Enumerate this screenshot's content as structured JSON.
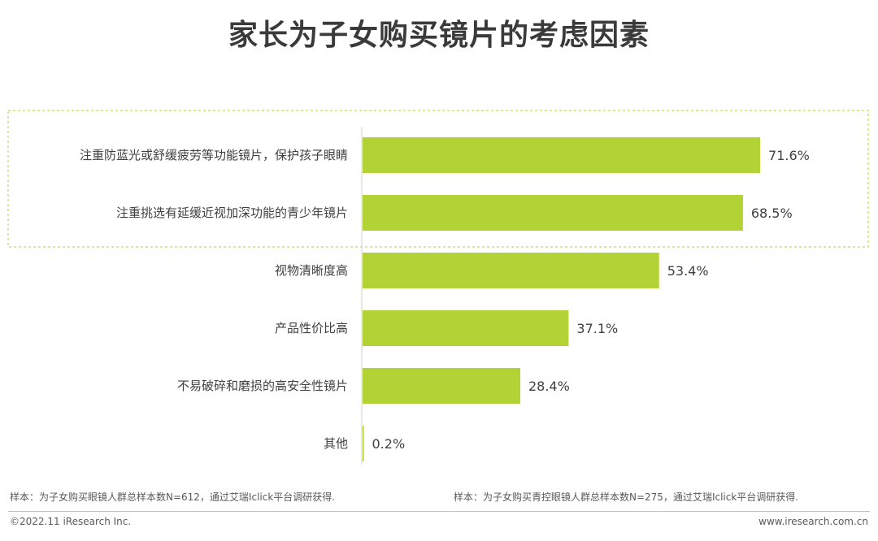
{
  "title": "家长为子女购买镜片的考虑因素",
  "chart_data": {
    "type": "bar",
    "orientation": "horizontal",
    "title": "家长为子女购买镜片的考虑因素",
    "categories": [
      "注重防蓝光或舒缓疲劳等功能镜片，保护孩子眼睛",
      "注重挑选有延缓近视加深功能的青少年镜片",
      "视物清晰度高",
      "产品性价比高",
      "不易破碎和磨损的高安全性镜片",
      "其他"
    ],
    "values": [
      71.6,
      68.5,
      53.4,
      37.1,
      28.4,
      0.2
    ],
    "value_labels": [
      "71.6%",
      "68.5%",
      "53.4%",
      "37.1%",
      "28.4%",
      "0.2%"
    ],
    "unit": "%",
    "highlighted_categories": 2,
    "bar_color": "#b2d235",
    "highlight_border_color": "#b2d235",
    "grid": false
  },
  "notes": {
    "left": "样本：为子女购买眼镜人群总样本数N=612，通过艾瑞Iclick平台调研获得.",
    "right": "样本：为子女购买青控眼镜人群总样本数N=275，通过艾瑞Iclick平台调研获得."
  },
  "footer": {
    "copyright": "©2022.11 iResearch Inc.",
    "website": "www.iresearch.com.cn"
  }
}
